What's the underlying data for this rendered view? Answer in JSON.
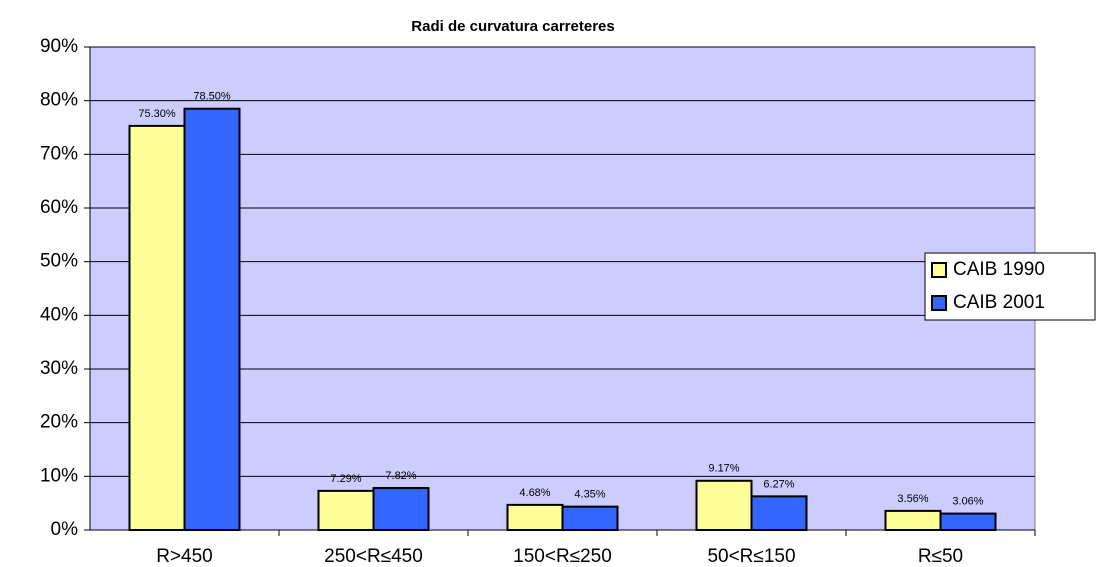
{
  "chart_data": {
    "type": "bar",
    "title": "Radi de curvatura carreteres",
    "categories": [
      "R>450",
      "250<R≤450",
      "150<R≤250",
      "50<R≤150",
      "R≤50"
    ],
    "series": [
      {
        "name": "CAIB 1990",
        "color": "#ffff99",
        "values": [
          75.3,
          7.29,
          4.68,
          9.17,
          3.56
        ],
        "value_labels": [
          "75.30%",
          "7.29%",
          "4.68%",
          "9.17%",
          "3.56%"
        ]
      },
      {
        "name": "CAIB 2001",
        "color": "#3366ff",
        "values": [
          78.5,
          7.82,
          4.35,
          6.27,
          3.06
        ],
        "value_labels": [
          "78.50%",
          "7.82%",
          "4.35%",
          "6.27%",
          "3.06%"
        ]
      }
    ],
    "ylim": [
      0,
      90
    ],
    "yticks": [
      {
        "value": 0,
        "label": "0%"
      },
      {
        "value": 10,
        "label": "10%"
      },
      {
        "value": 20,
        "label": "20%"
      },
      {
        "value": 30,
        "label": "30%"
      },
      {
        "value": 40,
        "label": "40%"
      },
      {
        "value": 50,
        "label": "50%"
      },
      {
        "value": 60,
        "label": "60%"
      },
      {
        "value": 70,
        "label": "70%"
      },
      {
        "value": 80,
        "label": "80%"
      },
      {
        "value": 90,
        "label": "90%"
      }
    ],
    "grid": true,
    "legend": "right",
    "plot_background": "#ccccff"
  }
}
